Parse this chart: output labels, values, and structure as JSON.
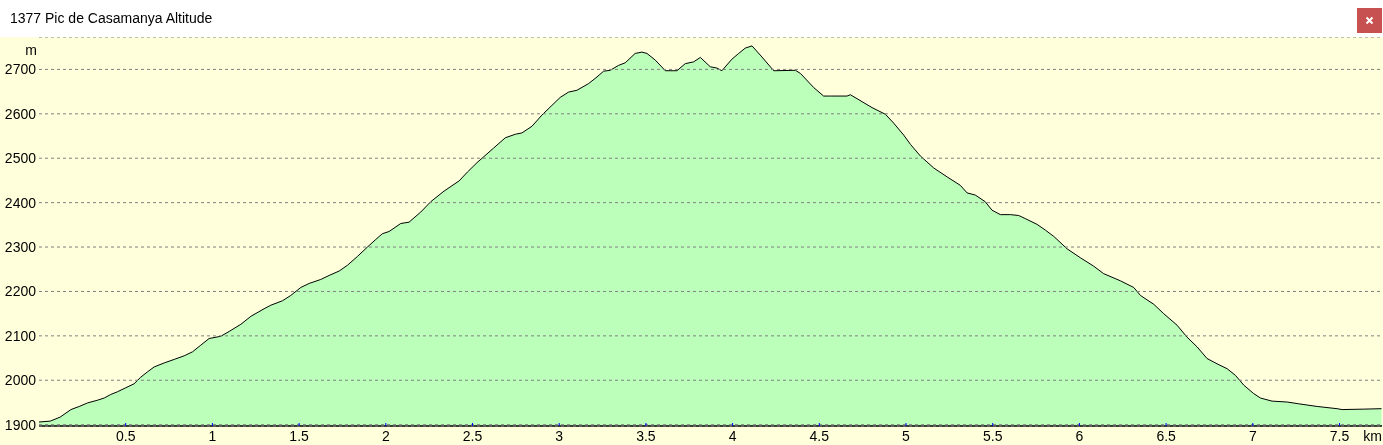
{
  "chart_data": {
    "type": "area",
    "title": "1377 Pic de Casamanya Altitude",
    "xlabel": "km",
    "ylabel": "m",
    "x": [
      0,
      0.065,
      0.122,
      0.184,
      0.232,
      0.28,
      0.337,
      0.376,
      0.414,
      0.452,
      0.5,
      0.548,
      0.587,
      0.626,
      0.664,
      0.722,
      0.78,
      0.837,
      0.885,
      0.933,
      0.981,
      1.048,
      1.097,
      1.164,
      1.222,
      1.298,
      1.337,
      1.404,
      1.452,
      1.51,
      1.558,
      1.625,
      1.673,
      1.731,
      1.779,
      1.837,
      1.894,
      1.942,
      1.98,
      2.019,
      2.086,
      2.134,
      2.202,
      2.259,
      2.336,
      2.423,
      2.471,
      2.526,
      2.622,
      2.689,
      2.747,
      2.785,
      2.843,
      2.9,
      2.958,
      3.006,
      3.054,
      3.102,
      3.169,
      3.218,
      3.256,
      3.294,
      3.342,
      3.381,
      3.438,
      3.477,
      3.506,
      3.554,
      3.612,
      3.679,
      3.727,
      3.775,
      3.814,
      3.871,
      3.91,
      3.938,
      3.996,
      4.035,
      4.073,
      4.112,
      4.169,
      4.237,
      4.362,
      4.391,
      4.468,
      4.525,
      4.564,
      4.66,
      4.679,
      4.718,
      4.804,
      4.881,
      4.929,
      4.987,
      5.026,
      5.083,
      5.16,
      5.237,
      5.313,
      5.352,
      5.4,
      5.457,
      5.496,
      5.544,
      5.602,
      5.65,
      5.688,
      5.756,
      5.804,
      5.852,
      5.929,
      6.005,
      6.082,
      6.14,
      6.236,
      6.313,
      6.352,
      6.429,
      6.486,
      6.563,
      6.621,
      6.679,
      6.736,
      6.794,
      6.852,
      6.9,
      6.948,
      7.005,
      7.044,
      7.111,
      7.198,
      7.265,
      7.371,
      7.486,
      7.515,
      7.64,
      7.742
    ],
    "values": [
      1906,
      1908,
      1917,
      1934,
      1941,
      1949,
      1955,
      1960,
      1968,
      1974,
      1983,
      1992,
      2007,
      2019,
      2030,
      2039,
      2047,
      2055,
      2064,
      2079,
      2094,
      2099,
      2110,
      2126,
      2144,
      2161,
      2169,
      2179,
      2191,
      2209,
      2218,
      2227,
      2236,
      2246,
      2259,
      2279,
      2300,
      2317,
      2330,
      2335,
      2353,
      2356,
      2379,
      2402,
      2426,
      2449,
      2469,
      2490,
      2523,
      2546,
      2554,
      2557,
      2572,
      2597,
      2619,
      2637,
      2649,
      2653,
      2668,
      2683,
      2696,
      2698,
      2709,
      2715,
      2736,
      2739,
      2736,
      2721,
      2697,
      2697,
      2713,
      2717,
      2727,
      2706,
      2703,
      2697,
      2723,
      2736,
      2748,
      2753,
      2728,
      2697,
      2698,
      2691,
      2659,
      2640,
      2640,
      2640,
      2643,
      2634,
      2614,
      2599,
      2579,
      2552,
      2531,
      2505,
      2478,
      2458,
      2439,
      2422,
      2417,
      2402,
      2383,
      2373,
      2373,
      2371,
      2364,
      2351,
      2338,
      2324,
      2296,
      2276,
      2257,
      2240,
      2224,
      2209,
      2191,
      2171,
      2150,
      2124,
      2097,
      2075,
      2049,
      2037,
      2026,
      2011,
      1989,
      1970,
      1960,
      1953,
      1951,
      1947,
      1941,
      1936,
      1934,
      1935,
      1936
    ],
    "color": "#bbffbb",
    "xlim": [
      0,
      7.745
    ],
    "ylim": [
      1897,
      2773
    ],
    "xticks": [
      0.5,
      1,
      1.5,
      2,
      2.5,
      3,
      3.5,
      4,
      4.5,
      5,
      5.5,
      6,
      6.5,
      7,
      7.5
    ],
    "yticks": [
      1900,
      2000,
      2100,
      2200,
      2300,
      2400,
      2500,
      2600,
      2700
    ],
    "grid": "y"
  }
}
